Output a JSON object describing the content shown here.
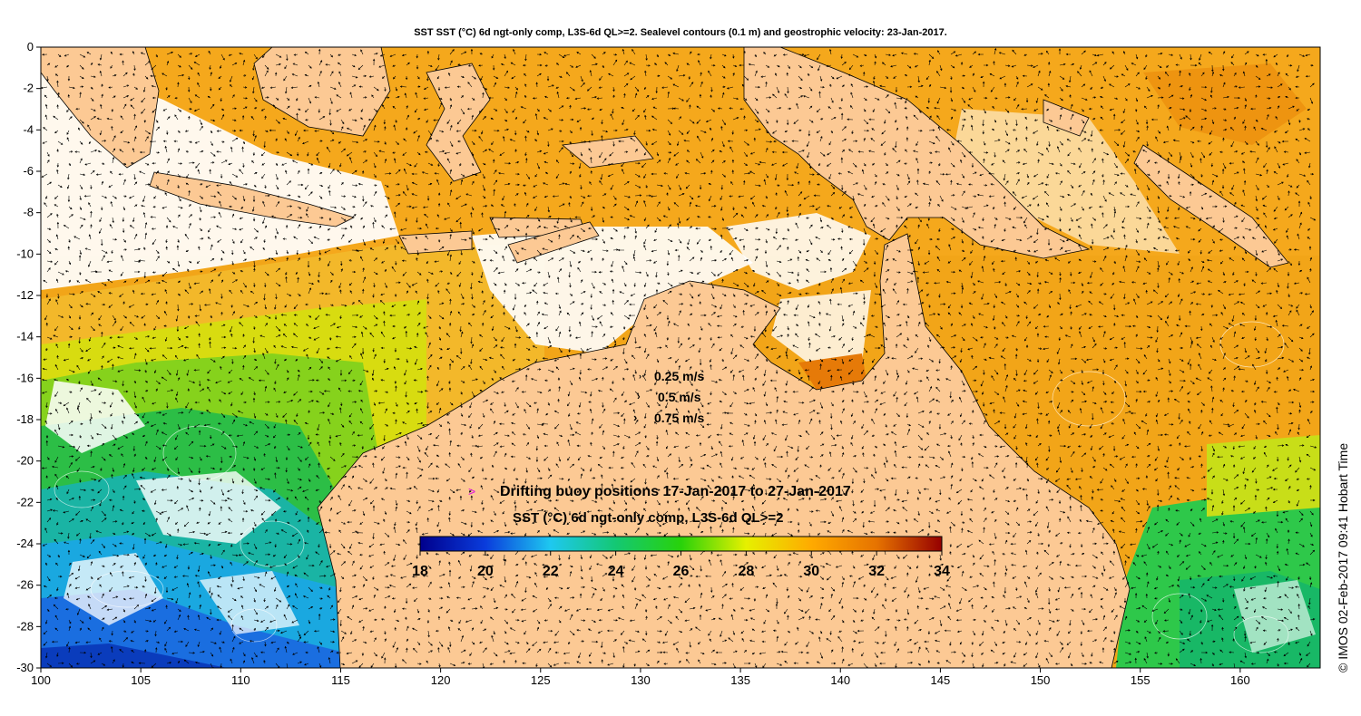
{
  "title": "SST SST (°C) 6d ngt-only comp, L3S-6d QL>=2. Sealevel contours (0.1 m) and geostrophic velocity: 23-Jan-2017.",
  "credit": "© IMOS 02-Feb-2017 09:41 Hobart Time",
  "map": {
    "lon_range": [
      100,
      164
    ],
    "lat_range": [
      -30,
      0
    ],
    "lon_ticks": [
      100,
      105,
      110,
      115,
      120,
      125,
      130,
      135,
      140,
      145,
      150,
      155,
      160
    ],
    "lat_ticks": [
      0,
      -2,
      -4,
      -6,
      -8,
      -10,
      -12,
      -14,
      -16,
      -18,
      -20,
      -22,
      -24,
      -26,
      -28,
      -30
    ],
    "land_color": "#fcc994"
  },
  "velocity_legend": {
    "items": [
      {
        "label": "0.25 m/s"
      },
      {
        "label": "0.5 m/s"
      },
      {
        "label": "0.75 m/s"
      }
    ]
  },
  "buoy_legend": {
    "symbol": ">",
    "symbol_color": "#e010e0",
    "label": "Drifting buoy positions 17-Jan-2017 to 27-Jan-2017"
  },
  "colorbar": {
    "title": "SST (°C) 6d ngt-only comp, L3S-6d QL>=2",
    "min": 18,
    "max": 34,
    "ticks": [
      18,
      20,
      22,
      24,
      26,
      28,
      30,
      32,
      34
    ],
    "stops": [
      {
        "value": 18,
        "color": "#00008c"
      },
      {
        "value": 20,
        "color": "#0a3cdc"
      },
      {
        "value": 22,
        "color": "#1ec8f0"
      },
      {
        "value": 24,
        "color": "#14c873"
      },
      {
        "value": 26,
        "color": "#28d20a"
      },
      {
        "value": 28,
        "color": "#e6f000"
      },
      {
        "value": 30,
        "color": "#ffaa00"
      },
      {
        "value": 32,
        "color": "#e67300"
      },
      {
        "value": 34,
        "color": "#960000"
      }
    ]
  }
}
